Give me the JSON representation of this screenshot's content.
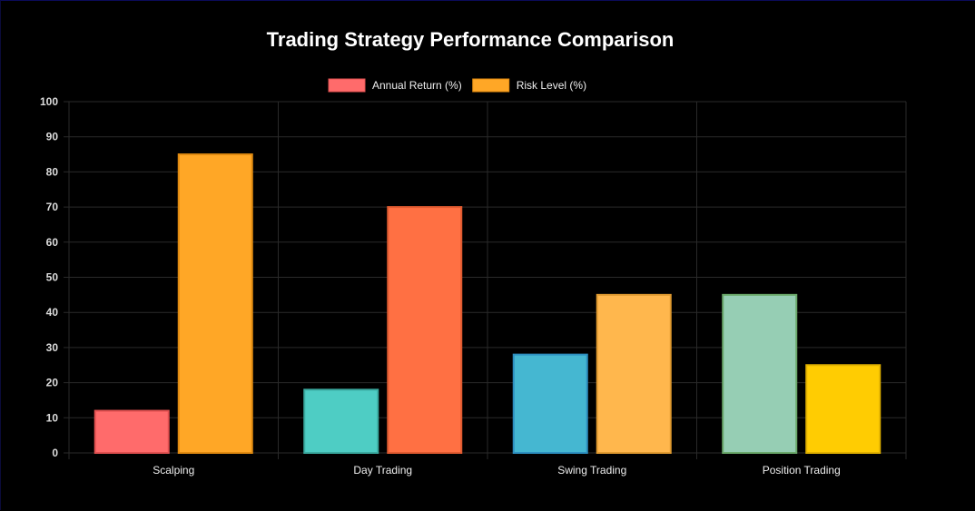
{
  "chart_data": {
    "type": "bar",
    "title": "Trading Strategy Performance Comparison",
    "categories": [
      "Scalping",
      "Day Trading",
      "Swing Trading",
      "Position Trading"
    ],
    "series": [
      {
        "name": "Annual Return (%)",
        "values": [
          12,
          18,
          28,
          45
        ],
        "legend_color": "#ff6b6b",
        "colors": [
          "#ff6b6b",
          "#4ecdc4",
          "#45b7d1",
          "#96ceb4"
        ],
        "borders": [
          "#e05050",
          "#3aa99f",
          "#2d8fc0",
          "#6aa86a"
        ]
      },
      {
        "name": "Risk Level (%)",
        "values": [
          85,
          70,
          45,
          25
        ],
        "legend_color": "#ffa726",
        "colors": [
          "#ffa726",
          "#ff7043",
          "#ffb74d",
          "#ffcc02"
        ],
        "borders": [
          "#e08a10",
          "#e05a30",
          "#e09a30",
          "#e0b000"
        ]
      }
    ],
    "yticks": [
      0,
      10,
      20,
      30,
      40,
      50,
      60,
      70,
      80,
      90,
      100
    ],
    "ylim": [
      0,
      100
    ],
    "grid": true,
    "legend_position": "top"
  }
}
